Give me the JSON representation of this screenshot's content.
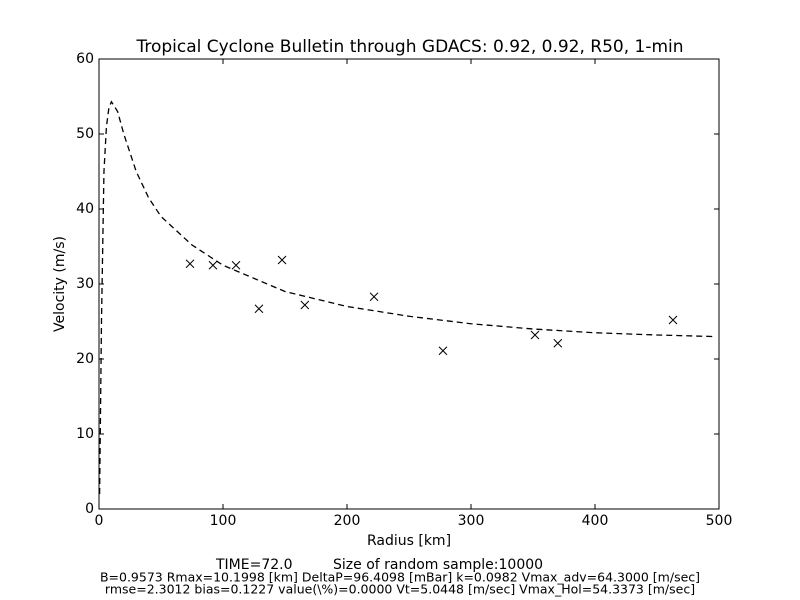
{
  "chart_data": {
    "type": "line",
    "title": "Tropical Cyclone Bulletin through GDACS: 0.92, 0.92, R50, 1-min",
    "xlabel": "Radius [km]",
    "ylabel": "Velocity (m/s)",
    "annotations": [
      "TIME=72.0",
      "Size of random sample:10000",
      "B=0.9573 Rmax=10.1998 [km]  DeltaP=96.4098 [mBar] k=0.0982 Vmax_adv=64.3000 [m/sec]",
      "rmse=2.3012 bias=0.1227 value(\\%)=0.0000 Vt=5.0448 [m/sec] Vmax_Hol=54.3373 [m/sec]"
    ],
    "xlim": [
      0,
      500
    ],
    "ylim": [
      0,
      60
    ],
    "xticks": [
      0,
      100,
      200,
      300,
      400,
      500
    ],
    "yticks": [
      0,
      10,
      20,
      30,
      40,
      50,
      60
    ],
    "series": [
      {
        "color": "#000000",
        "style": "dashed",
        "x": [
          0.5,
          2,
          4,
          6,
          8,
          10,
          15,
          20,
          30,
          40,
          50,
          75,
          100,
          150,
          200,
          250,
          300,
          350,
          400,
          450,
          495
        ],
        "values": [
          2,
          25,
          45,
          51,
          53.5,
          54.3,
          53,
          50,
          45,
          41.5,
          39,
          35.2,
          32.5,
          29,
          27,
          25.7,
          24.7,
          24,
          23.5,
          23.2,
          23
        ]
      },
      {
        "color": "#000000",
        "marker": "x",
        "x": [
          73.4,
          91.9,
          110.5,
          129,
          147.6,
          166,
          221.8,
          277.4,
          351.6,
          370,
          462.9
        ],
        "values": [
          32.7,
          32.5,
          32.5,
          26.7,
          33.2,
          27.2,
          28.3,
          21.1,
          23.2,
          22.1,
          25.2
        ]
      }
    ]
  }
}
